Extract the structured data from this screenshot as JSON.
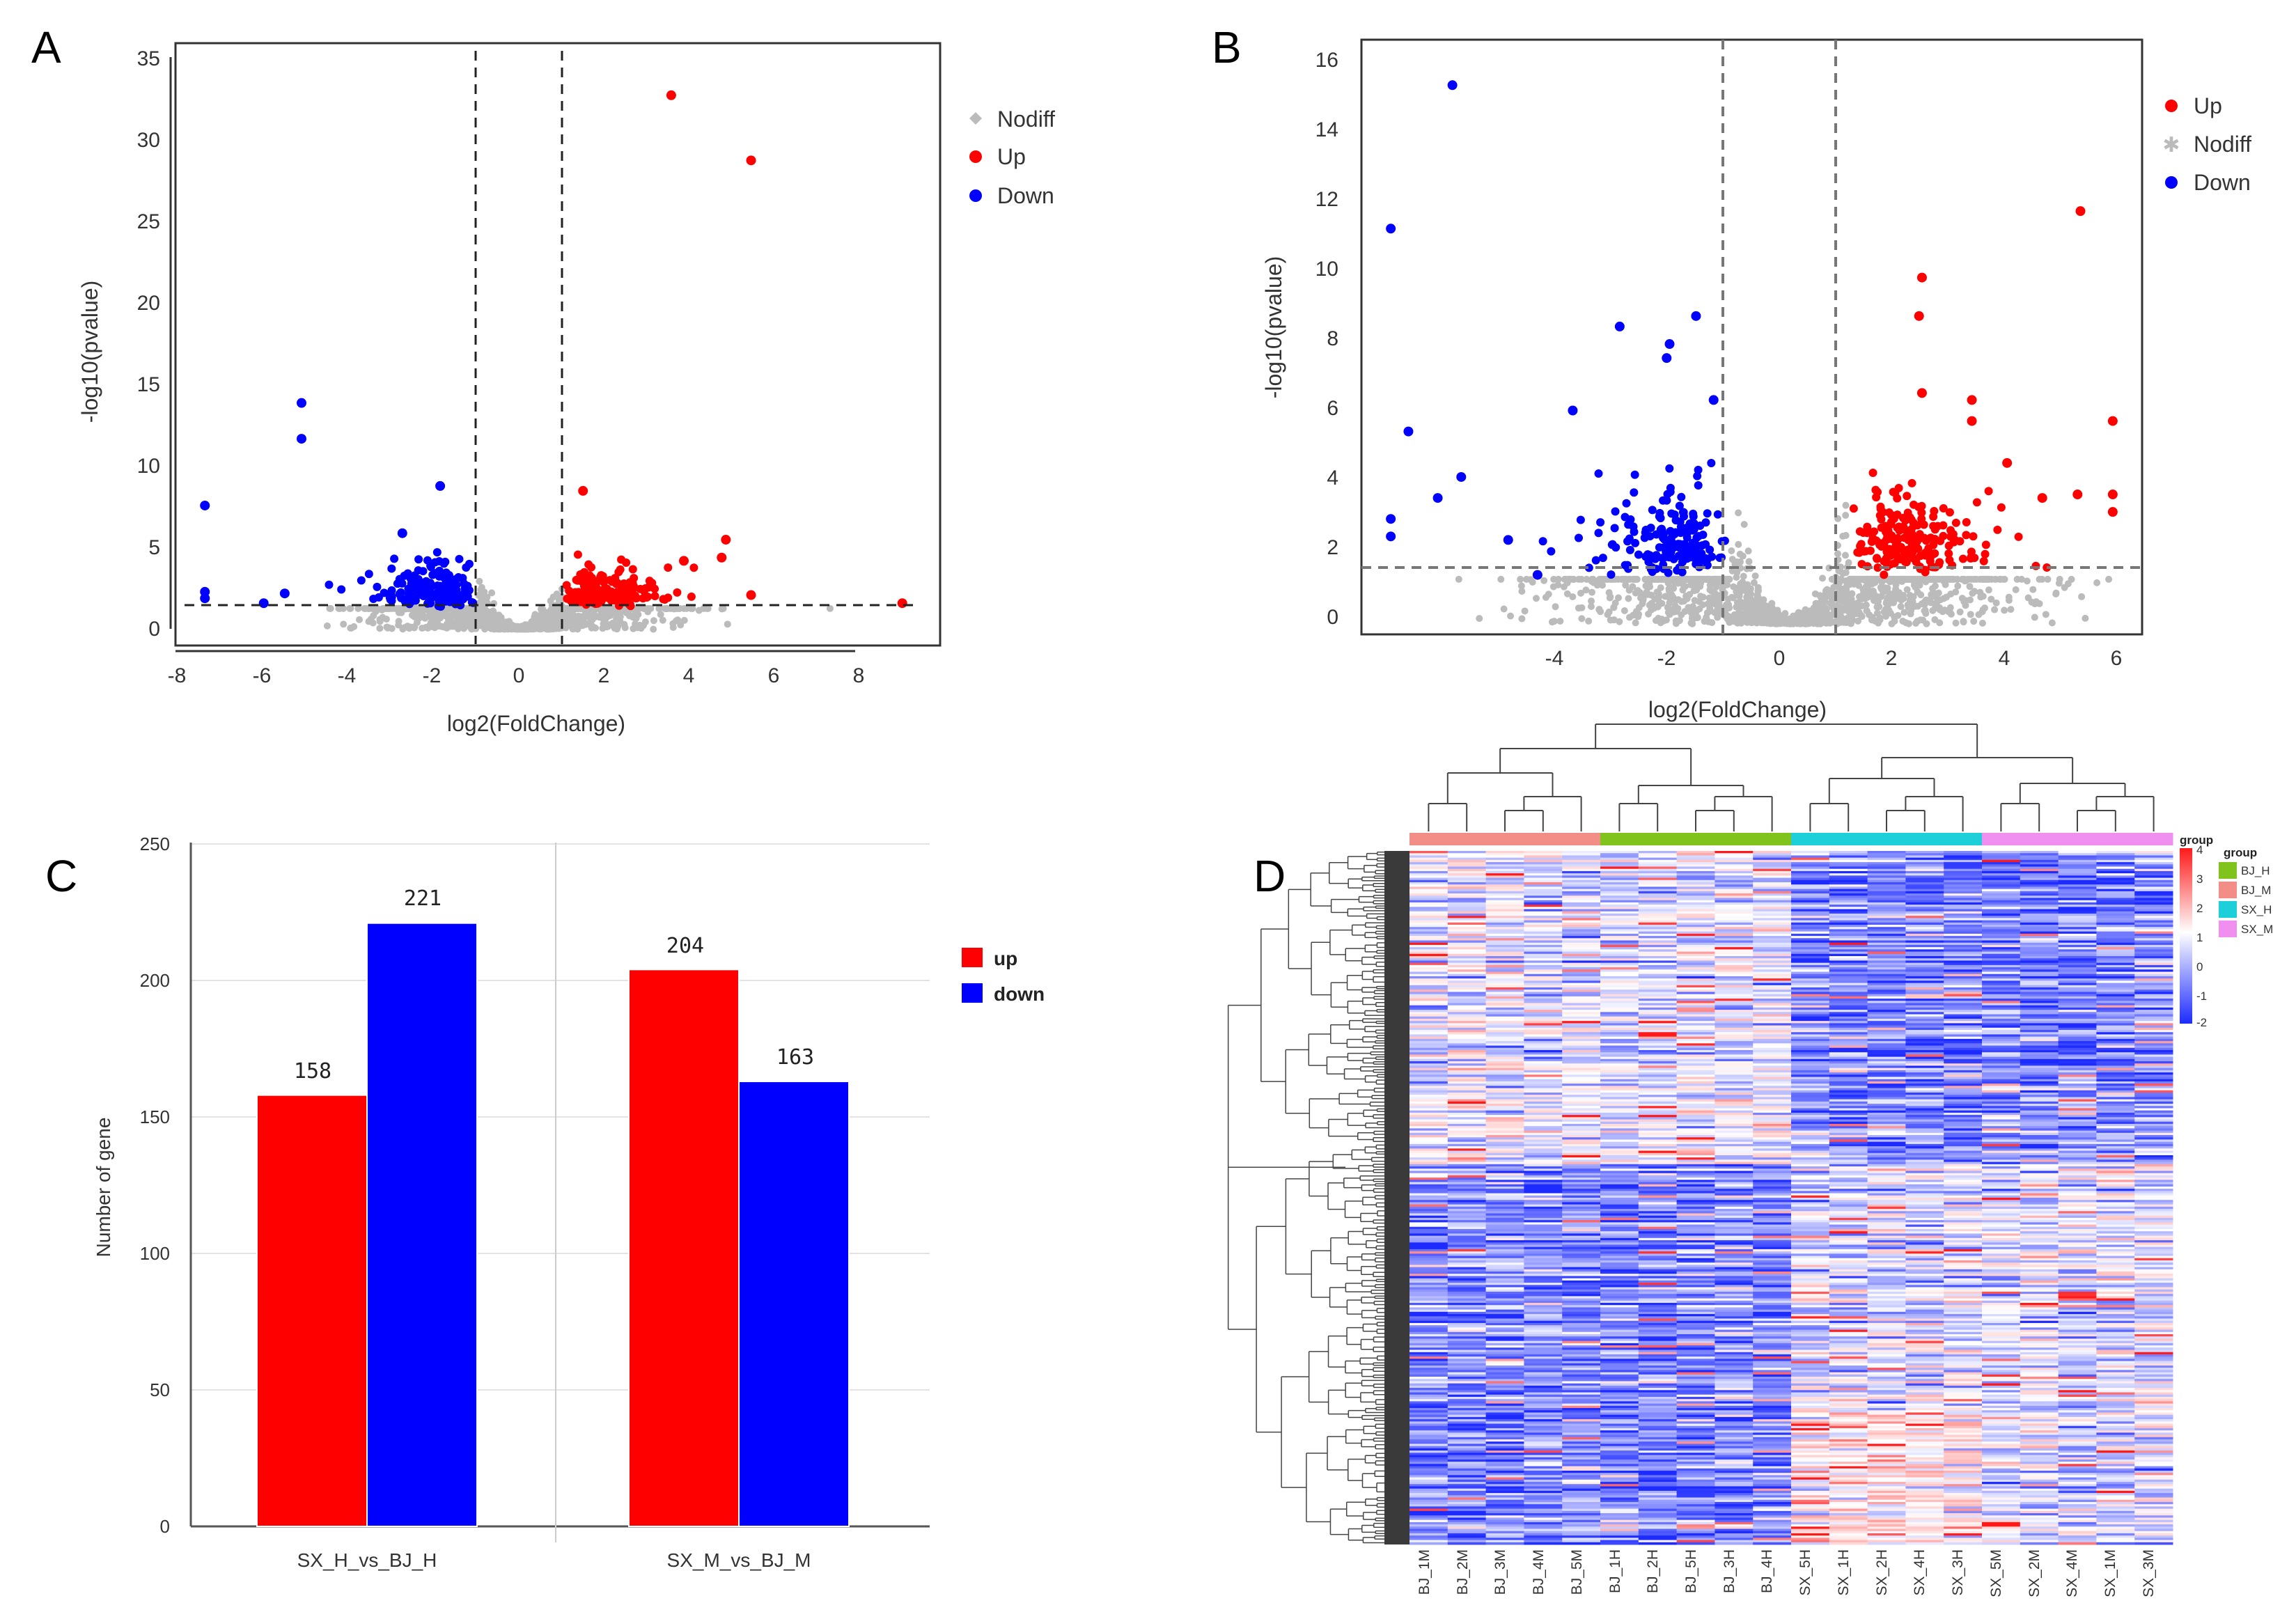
{
  "panels": {
    "A": "A",
    "B": "B",
    "C": "C",
    "D": "D"
  },
  "colors": {
    "up": "#ff0000",
    "down": "#0000ff",
    "nodiff": "#bbbbbb",
    "bar_up": "#ff0000",
    "bar_down": "#0000ff",
    "group_BJ_H": "#7fc31c",
    "group_BJ_M": "#f28e86",
    "group_SX_H": "#1ccfd8",
    "group_SX_M": "#f08ff0"
  },
  "chart_data": [
    {
      "panel": "A",
      "type": "scatter",
      "xlabel": "log2(FoldChange)",
      "ylabel": "-log10(pvalue)",
      "xlim": [
        -8.2,
        10
      ],
      "ylim": [
        -1,
        36
      ],
      "xticks": [
        "-8",
        "-6",
        "-4",
        "-2",
        "0",
        "2",
        "4",
        "6",
        "8"
      ],
      "yticks": [
        "0",
        "5",
        "10",
        "15",
        "20",
        "25",
        "30",
        "35"
      ],
      "thresholds": {
        "fc": [
          -1,
          1
        ],
        "p": 1.3
      },
      "legend": [
        "Nodiff",
        "Up",
        "Down"
      ],
      "legend_position": "right",
      "highlight_up": [
        [
          3.6,
          32.8
        ],
        [
          5.5,
          28.8
        ],
        [
          1.5,
          8.5
        ],
        [
          4.9,
          5.5
        ],
        [
          4.8,
          4.4
        ],
        [
          3.9,
          4.2
        ],
        [
          5.5,
          2.1
        ],
        [
          9.1,
          1.6
        ]
      ],
      "highlight_down": [
        [
          -5.2,
          13.9
        ],
        [
          -5.2,
          11.7
        ],
        [
          -7.5,
          7.6
        ],
        [
          -1.9,
          8.8
        ],
        [
          -7.5,
          2.3
        ],
        [
          -7.5,
          1.9
        ],
        [
          -6.1,
          1.6
        ],
        [
          -5.6,
          2.2
        ],
        [
          -2.8,
          5.9
        ]
      ]
    },
    {
      "panel": "B",
      "type": "scatter",
      "xlabel": "log2(FoldChange)",
      "ylabel": "-log10(pvalue)",
      "xlim": [
        -7.3,
        6
      ],
      "ylim": [
        -0.3,
        16.7
      ],
      "xticks": [
        "-4",
        "-2",
        "0",
        "2",
        "4",
        "6"
      ],
      "yticks": [
        "0",
        "2",
        "4",
        "6",
        "8",
        "10",
        "12",
        "14",
        "16"
      ],
      "thresholds": {
        "fc": [
          -1,
          1
        ],
        "p": 1.3
      },
      "legend": [
        "Up",
        "Nodiff",
        "Down"
      ],
      "legend_position": "right",
      "highlight_up": [
        [
          4.95,
          11.8
        ],
        [
          2.25,
          9.9
        ],
        [
          2.2,
          8.8
        ],
        [
          2.25,
          6.6
        ],
        [
          3.1,
          6.4
        ],
        [
          3.1,
          5.8
        ],
        [
          5.5,
          5.8
        ],
        [
          3.7,
          4.6
        ],
        [
          4.9,
          3.7
        ],
        [
          5.5,
          3.7
        ],
        [
          5.5,
          3.2
        ],
        [
          4.3,
          3.6
        ]
      ],
      "highlight_down": [
        [
          -5.75,
          15.4
        ],
        [
          -6.8,
          11.3
        ],
        [
          -1.6,
          8.8
        ],
        [
          -2.9,
          8.5
        ],
        [
          -2.05,
          8.0
        ],
        [
          -2.1,
          7.6
        ],
        [
          -3.7,
          6.1
        ],
        [
          -6.5,
          5.5
        ],
        [
          -1.3,
          6.4
        ],
        [
          -5.6,
          4.2
        ],
        [
          -6.0,
          3.6
        ],
        [
          -6.8,
          3.0
        ],
        [
          -6.8,
          2.5
        ],
        [
          -4.8,
          2.4
        ],
        [
          -4.3,
          1.4
        ]
      ]
    },
    {
      "panel": "C",
      "type": "bar",
      "categories": [
        "SX_H_vs_BJ_H",
        "SX_M_vs_BJ_M"
      ],
      "series": [
        {
          "name": "up",
          "values": [
            158,
            204
          ]
        },
        {
          "name": "down",
          "values": [
            221,
            163
          ]
        }
      ],
      "value_labels": [
        [
          "158",
          "204"
        ],
        [
          "221",
          "163"
        ]
      ],
      "ylabel": "Number of gene",
      "ylim": [
        0,
        250
      ],
      "yticks": [
        "0",
        "50",
        "100",
        "150",
        "200",
        "250"
      ],
      "legend": [
        "up",
        "down"
      ],
      "legend_position": "right"
    },
    {
      "panel": "D",
      "type": "heatmap",
      "columns": [
        "BJ_1M",
        "BJ_2M",
        "BJ_3M",
        "BJ_4M",
        "BJ_5M",
        "BJ_1H",
        "BJ_2H",
        "BJ_5H",
        "BJ_3H",
        "BJ_4H",
        "SX_5H",
        "SX_1H",
        "SX_2H",
        "SX_4H",
        "SX_3H",
        "SX_5M",
        "SX_2M",
        "SX_4M",
        "SX_1M",
        "SX_3M"
      ],
      "column_groups": [
        "BJ_M",
        "BJ_M",
        "BJ_M",
        "BJ_M",
        "BJ_M",
        "BJ_H",
        "BJ_H",
        "BJ_H",
        "BJ_H",
        "BJ_H",
        "SX_H",
        "SX_H",
        "SX_H",
        "SX_H",
        "SX_H",
        "SX_M",
        "SX_M",
        "SX_M",
        "SX_M",
        "SX_M"
      ],
      "color_scale": {
        "min": -2,
        "max": 4,
        "ticks": [
          "4",
          "3",
          "2",
          "1",
          "0",
          "-1",
          "-2"
        ],
        "low": "#1d2bff",
        "mid": "#ffffff",
        "high": "#ff1a1a"
      },
      "legend_title": "group",
      "legend_title_2": "group",
      "legend": [
        "BJ_H",
        "BJ_M",
        "SX_H",
        "SX_M"
      ]
    }
  ]
}
